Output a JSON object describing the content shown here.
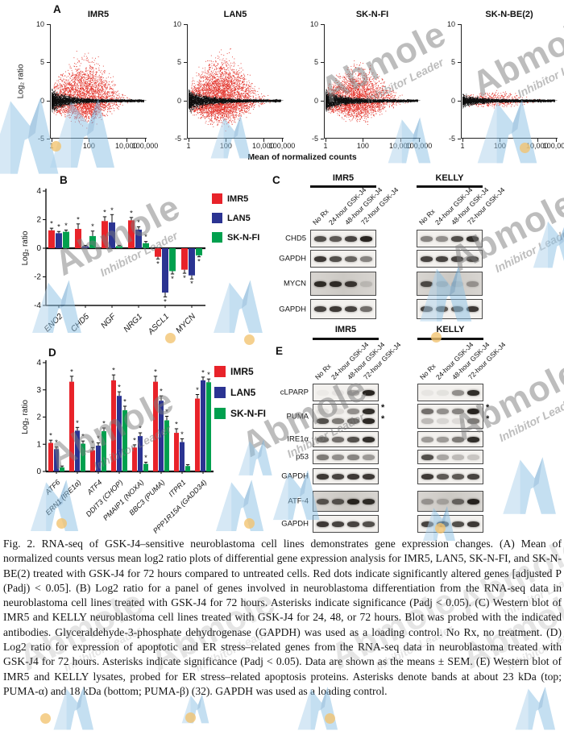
{
  "watermark": {
    "brand": "Abmole",
    "tagline": "Inhibitor Leader"
  },
  "panels": {
    "a": {
      "label": "A"
    },
    "b": {
      "label": "B"
    },
    "c": {
      "label": "C"
    },
    "d": {
      "label": "D"
    },
    "e": {
      "label": "E"
    }
  },
  "chart_data": [
    {
      "id": "panel-a-ma-plots",
      "type": "scatter",
      "subtype": "MA plots of RNA-seq differential gene expression (GSK-J4 72 h vs untreated)",
      "ylabel": "Log₂ ratio",
      "xlabel": "Mean of normalized counts",
      "ylim": [
        -5,
        10
      ],
      "yticks": [
        10,
        5,
        0,
        -5
      ],
      "xtick_labels": [
        "1",
        "100",
        "10,000",
        "100,000"
      ],
      "xtick_decades": [
        0,
        2,
        4,
        5
      ],
      "significant_color": "#e23128",
      "nonsignificant_color": "#0e0e0e",
      "note": "Red dots = significantly altered genes, adjusted P (Padj) < 0.05",
      "plots": [
        {
          "title": "IMR5",
          "red_points": 2600,
          "red_max_up": 6.2,
          "red_max_down": 3.2,
          "cloud_half_width": 0.55,
          "x_power": 1.9,
          "black_points": 3000
        },
        {
          "title": "LAN5",
          "red_points": 3300,
          "red_max_up": 6.6,
          "red_max_down": 3.4,
          "cloud_half_width": 0.57,
          "x_power": 1.9,
          "black_points": 3000
        },
        {
          "title": "SK-N-FI",
          "red_points": 2300,
          "red_max_up": 5.2,
          "red_max_down": 2.8,
          "cloud_half_width": 0.52,
          "x_power": 1.9,
          "black_points": 3000
        },
        {
          "title": "SK-N-BE(2)",
          "red_points": 300,
          "red_max_up": 1.3,
          "red_max_down": 0.9,
          "cloud_half_width": 0.3,
          "x_power": 1.4,
          "black_points": 2800
        }
      ]
    },
    {
      "id": "panel-b-differentiation-genes",
      "type": "bar",
      "ylabel": "Log₂ ratio",
      "ylim": [
        -4,
        4
      ],
      "yticks": [
        4,
        2,
        0,
        -2,
        -4
      ],
      "grid": false,
      "legend_position": "upper right",
      "sig_note": "* Padj < 0.05",
      "categories": [
        "ENO2",
        "CHD5",
        "NGF",
        "NRG1",
        "ASCL1",
        "MYCN"
      ],
      "series": [
        {
          "name": "IMR5",
          "color": "#e8232a",
          "values": [
            1.25,
            1.35,
            1.9,
            1.95,
            -0.6,
            -1.5
          ],
          "errors": [
            0.15,
            0.35,
            0.3,
            0.2,
            0.15,
            0.25
          ],
          "sig": [
            1,
            1,
            1,
            1,
            1,
            1
          ]
        },
        {
          "name": "LAN5",
          "color": "#2b3492",
          "values": [
            1.05,
            0.15,
            1.8,
            1.3,
            -3.1,
            -1.9
          ],
          "errors": [
            0.12,
            0.05,
            0.55,
            0.2,
            0.3,
            0.25
          ],
          "sig": [
            1,
            0,
            1,
            1,
            1,
            1
          ]
        },
        {
          "name": "SK-N-FI",
          "color": "#00a04e",
          "values": [
            1.15,
            0.85,
            0.15,
            0.35,
            -1.6,
            -0.5
          ],
          "errors": [
            0.12,
            0.35,
            0.05,
            0.12,
            0.2,
            0.1
          ],
          "sig": [
            1,
            1,
            0,
            1,
            1,
            1
          ]
        }
      ]
    },
    {
      "id": "panel-d-apoptotic-er-stress-genes",
      "type": "bar",
      "ylabel": "Log₂ ratio",
      "ylim": [
        0,
        4
      ],
      "yticks": [
        4,
        3,
        2,
        1,
        0
      ],
      "grid": false,
      "legend_position": "upper right",
      "sig_note": "* Padj < 0.05",
      "categories": [
        "ATF6",
        "ERN1 (IRE1α)",
        "ATF4",
        "DDIT3 (CHOP)",
        "PMAIP1 (NOXA)",
        "BBC3 (PUMA)",
        "ITPR1",
        "PPP1R15A (GADD34)"
      ],
      "series": [
        {
          "name": "IMR5",
          "color": "#e8232a",
          "values": [
            1.05,
            3.3,
            0.78,
            3.35,
            0.88,
            3.3,
            1.42,
            2.68
          ],
          "errors": [
            0.1,
            0.2,
            0.1,
            0.2,
            0.1,
            0.2,
            0.15,
            0.15
          ],
          "sig": [
            1,
            1,
            1,
            1,
            1,
            1,
            1,
            1
          ]
        },
        {
          "name": "LAN5",
          "color": "#2b3492",
          "values": [
            0.82,
            1.5,
            0.95,
            2.78,
            1.3,
            2.6,
            1.08,
            3.35
          ],
          "errors": [
            0.08,
            0.12,
            0.1,
            0.15,
            0.12,
            0.18,
            0.12,
            0.12
          ],
          "sig": [
            1,
            1,
            1,
            1,
            1,
            1,
            1,
            1
          ]
        },
        {
          "name": "SK-N-FI",
          "color": "#00a04e",
          "values": [
            0.15,
            1.02,
            1.48,
            2.25,
            0.28,
            1.88,
            0.2,
            3.28
          ],
          "errors": [
            0.05,
            0.1,
            0.12,
            0.15,
            0.06,
            0.15,
            0.05,
            0.12
          ],
          "sig": [
            0,
            1,
            1,
            1,
            1,
            1,
            0,
            1
          ]
        }
      ]
    }
  ],
  "blots": {
    "c": {
      "row_labels": [
        "CHD5",
        "GAPDH",
        "MYCN",
        "GAPDH"
      ],
      "smear": [
        0,
        0,
        1,
        0
      ],
      "groups": [
        {
          "name": "IMR5",
          "lanes": [
            "No Rx",
            "24-hour GSK-J4",
            "48-hour GSK-J4",
            "72-hour GSK-J4"
          ],
          "bands": [
            [
              [
                0.75,
                0.7,
                0.8,
                0.95
              ]
            ],
            [
              [
                0.85,
                0.75,
                0.65,
                0.5
              ]
            ],
            [
              [
                0.9,
                0.9,
                0.85,
                0.15
              ]
            ],
            [
              [
                0.8,
                0.85,
                0.8,
                0.6
              ]
            ]
          ]
        },
        {
          "name": "KELLY",
          "lanes": [
            "No Rx",
            "24-hour GSK-J4",
            "48-hour GSK-J4",
            "72-hour GSK-J4"
          ],
          "bands": [
            [
              [
                0.5,
                0.45,
                0.75,
                0.9
              ]
            ],
            [
              [
                0.8,
                0.8,
                0.8,
                0.75
              ]
            ],
            [
              [
                0.75,
                0.2,
                0.1,
                0.35
              ]
            ],
            [
              [
                0.8,
                0.7,
                0.7,
                0.85
              ]
            ]
          ]
        }
      ]
    },
    "e": {
      "row_labels": [
        "cLPARP",
        "PUMA",
        "IRE1α",
        "p53",
        "GAPDH",
        "ATF-4",
        "GAPDH"
      ],
      "smear": [
        0,
        0,
        0,
        0,
        0,
        1,
        0
      ],
      "puma_asterisk_note": "* bands at ~23 kDa (PUMA-α) and ~18 kDa (PUMA-β)",
      "groups": [
        {
          "name": "IMR5",
          "lanes": [
            "No Rx",
            "24-hour GSK-J4",
            "48-hour GSK-J4",
            "72-hour GSK-J4"
          ],
          "bands": [
            [
              [
                0.03,
                0.06,
                0.35,
                0.95
              ]
            ],
            [
              [
                0.08,
                0.1,
                0.45,
                0.9
              ],
              [
                0.75,
                0.55,
                0.65,
                0.92
              ]
            ],
            [
              [
                0.65,
                0.6,
                0.75,
                0.9
              ]
            ],
            [
              [
                0.55,
                0.45,
                0.5,
                0.4
              ]
            ],
            [
              [
                0.85,
                0.8,
                0.85,
                0.85
              ]
            ],
            [
              [
                0.7,
                0.7,
                0.95,
                0.9
              ]
            ],
            [
              [
                0.85,
                0.8,
                0.8,
                0.75
              ]
            ]
          ]
        },
        {
          "name": "KELLY",
          "lanes": [
            "No Rx",
            "24-hour GSK-J4",
            "48-hour GSK-J4",
            "72-hour GSK-J4"
          ],
          "bands": [
            [
              [
                0.05,
                0.07,
                0.45,
                0.9
              ]
            ],
            [
              [
                0.6,
                0.45,
                0.5,
                0.95
              ],
              [
                0.25,
                0.12,
                0.1,
                0.55
              ]
            ],
            [
              [
                0.4,
                0.4,
                0.55,
                0.9
              ]
            ],
            [
              [
                0.75,
                0.35,
                0.25,
                0.2
              ]
            ],
            [
              [
                0.85,
                0.7,
                0.7,
                0.8
              ]
            ],
            [
              [
                0.35,
                0.25,
                0.6,
                0.95
              ]
            ],
            [
              [
                0.8,
                0.75,
                0.75,
                0.85
              ]
            ]
          ]
        }
      ]
    }
  },
  "caption": "Fig. 2. RNA-seq of GSK-J4–sensitive neuroblastoma cell lines demonstrates gene expression changes. (A) Mean of normalized counts versus mean log2 ratio plots of differential gene expression analysis for IMR5, LAN5, SK-N-FI, and SK-N-BE(2) treated with GSK-J4 for 72 hours compared to untreated cells. Red dots indicate significantly altered genes [adjusted P (Padj) < 0.05]. (B) Log2 ratio for a panel of genes involved in neuroblastoma differentiation from the RNA-seq data in neuroblastoma cell lines treated with GSK-J4 for 72 hours. Asterisks indicate significance (Padj < 0.05). (C) Western blot of IMR5 and KELLY neuroblastoma cell lines treated with GSK-J4 for 24, 48, or 72 hours. Blot was probed with the indicated antibodies. Glyceraldehyde-3-phosphate dehydrogenase (GAPDH) was used as a loading control. No Rx, no treatment. (D) Log2 ratio for expression of apoptotic and ER stress–related genes from the RNA-seq data in neuroblastoma treated with GSK-J4 for 72 hours. Asterisks indicate significance (Padj < 0.05). Data are shown as the means ± SEM. (E) Western blot of IMR5 and KELLY lysates, probed for ER stress–related apoptosis proteins. Asterisks denote bands at about 23 kDa (top; PUMA-α) and 18 kDa (bottom; PUMA-β) (32). GAPDH was used as a loading control."
}
